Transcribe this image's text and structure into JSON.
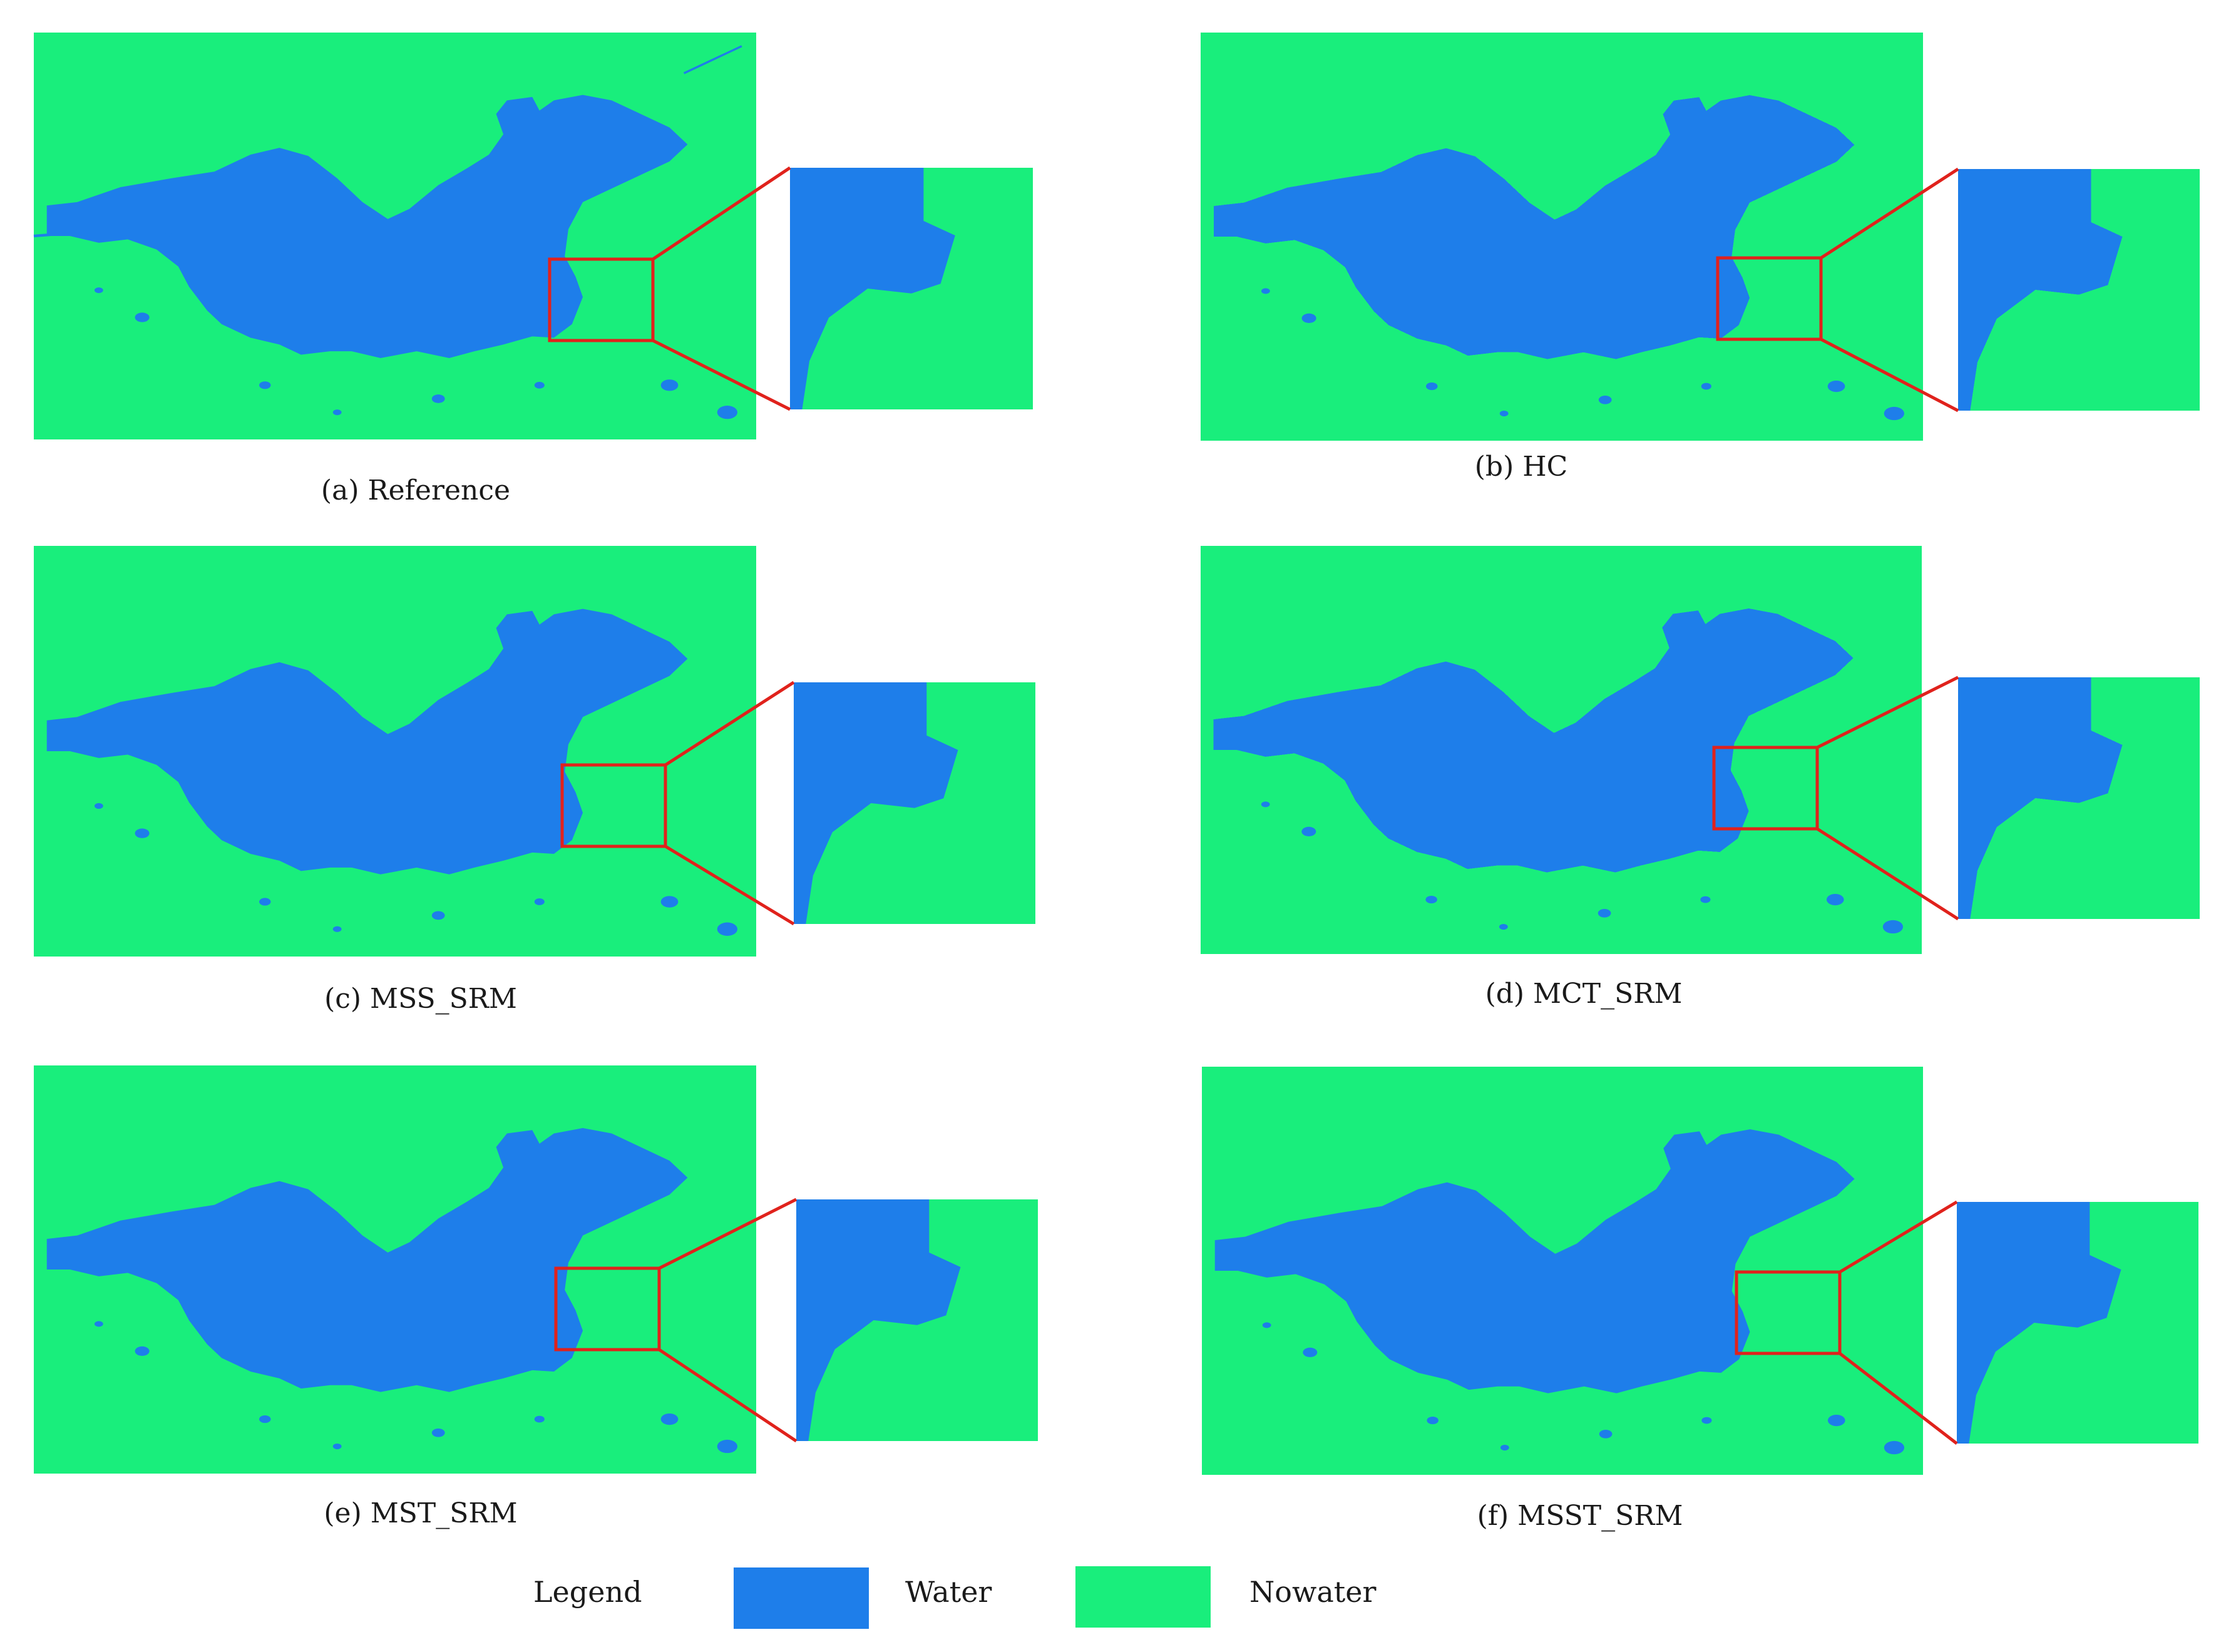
{
  "colors": {
    "water": "#1e7eea",
    "nowater": "#19ee7c",
    "highlight": "#e0221c"
  },
  "panels": [
    {
      "id": "a",
      "caption": "(a) Reference"
    },
    {
      "id": "b",
      "caption": "(b) HC"
    },
    {
      "id": "c",
      "caption": "(c) MSS_SRM"
    },
    {
      "id": "d",
      "caption": "(d) MCT_SRM"
    },
    {
      "id": "e",
      "caption": "(e) MST_SRM"
    },
    {
      "id": "f",
      "caption": "(f) MSST_SRM"
    }
  ],
  "legend": {
    "title": "Legend",
    "items": [
      {
        "label": "Water",
        "color": "#1e7eea"
      },
      {
        "label": "Nowater",
        "color": "#19ee7c"
      }
    ]
  }
}
